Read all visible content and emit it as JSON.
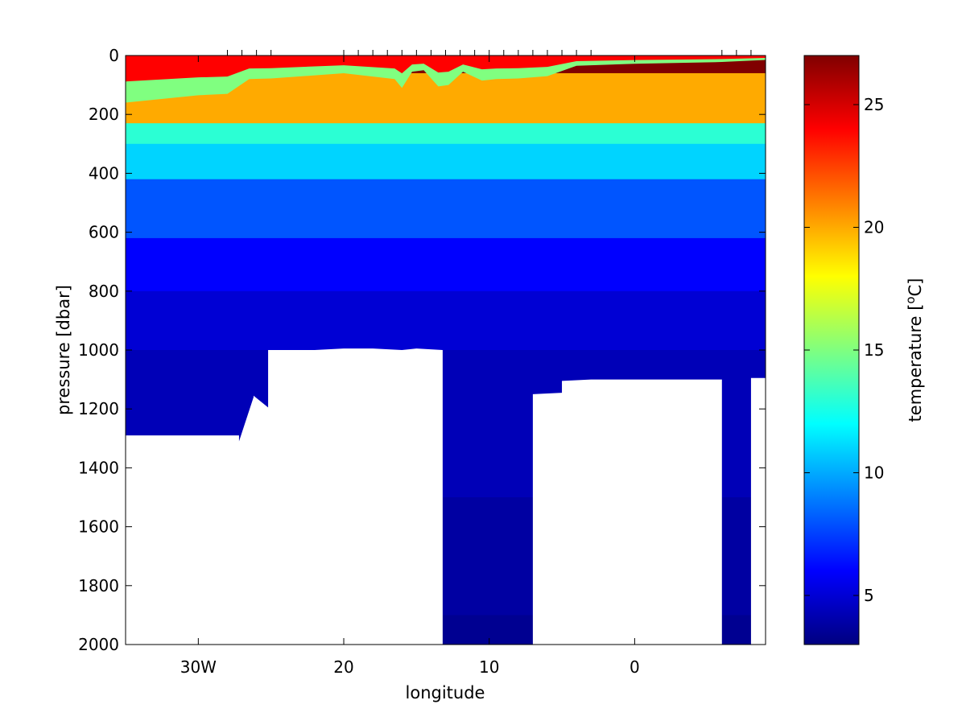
{
  "chart_data": {
    "type": "heatmap",
    "title": "",
    "xlabel": "longitude",
    "ylabel": "pressure [dbar]",
    "colorbar_label": "temperature [",
    "colorbar_label_sup": "o",
    "colorbar_label_end": "C]",
    "xlim": [
      35,
      -9
    ],
    "ylim": [
      2000,
      0
    ],
    "x_ticks": [
      {
        "value": 30,
        "label": "30W"
      },
      {
        "value": 20,
        "label": "20"
      },
      {
        "value": 10,
        "label": "10"
      },
      {
        "value": 0,
        "label": "0"
      }
    ],
    "y_ticks": [
      0,
      200,
      400,
      600,
      800,
      1000,
      1200,
      1400,
      1600,
      1800,
      2000
    ],
    "colorbar_range": [
      3,
      27
    ],
    "colorbar_ticks": [
      5,
      10,
      15,
      20,
      25
    ],
    "colormap": "jet",
    "station_longitudes": [
      28,
      27,
      26,
      25,
      20,
      19,
      18,
      17,
      16,
      15,
      14,
      13,
      12,
      11,
      10,
      9,
      8,
      7,
      6,
      5,
      4,
      3,
      -6,
      -7,
      -8
    ],
    "surface_temperature_profile": {
      "longitude": [
        35,
        30,
        28,
        26.5,
        25,
        20,
        16.5,
        16,
        15.3,
        14.5,
        13.5,
        12.8,
        11.8,
        10.5,
        9.5,
        8,
        6,
        4,
        0,
        -6,
        -9
      ],
      "depth_of_15C_dbar": [
        160,
        135,
        130,
        80,
        78,
        60,
        80,
        110,
        55,
        50,
        105,
        100,
        55,
        85,
        80,
        78,
        70,
        35,
        28,
        22,
        15
      ]
    },
    "temperature_layers_dbar": [
      {
        "temperature": 27,
        "depth": 0
      },
      {
        "temperature": 20,
        "depth": 60
      },
      {
        "temperature": 13,
        "depth": 230
      },
      {
        "temperature": 11,
        "depth": 300
      },
      {
        "temperature": 8,
        "depth": 420
      },
      {
        "temperature": 6,
        "depth": 620
      },
      {
        "temperature": 5,
        "depth": 800
      },
      {
        "temperature": 4.3,
        "depth": 1000
      },
      {
        "temperature": 3.8,
        "depth": 1500
      },
      {
        "temperature": 3.4,
        "depth": 1900
      }
    ],
    "seafloor_profile": {
      "longitude": [
        35,
        27.2,
        27.2,
        26.2,
        26.2,
        25.2,
        25.2,
        22,
        20,
        18,
        16,
        15,
        13.2,
        13.2,
        7,
        7,
        5,
        5,
        3,
        -6,
        -6,
        -8,
        -8,
        -9
      ],
      "max_pressure_dbar": [
        1290,
        1290,
        1310,
        1160,
        1155,
        1195,
        1000,
        1000,
        995,
        995,
        1000,
        995,
        1000,
        2000,
        2000,
        1150,
        1145,
        1105,
        1100,
        1100,
        2000,
        2000,
        1095,
        1095
      ]
    },
    "grid": false
  }
}
